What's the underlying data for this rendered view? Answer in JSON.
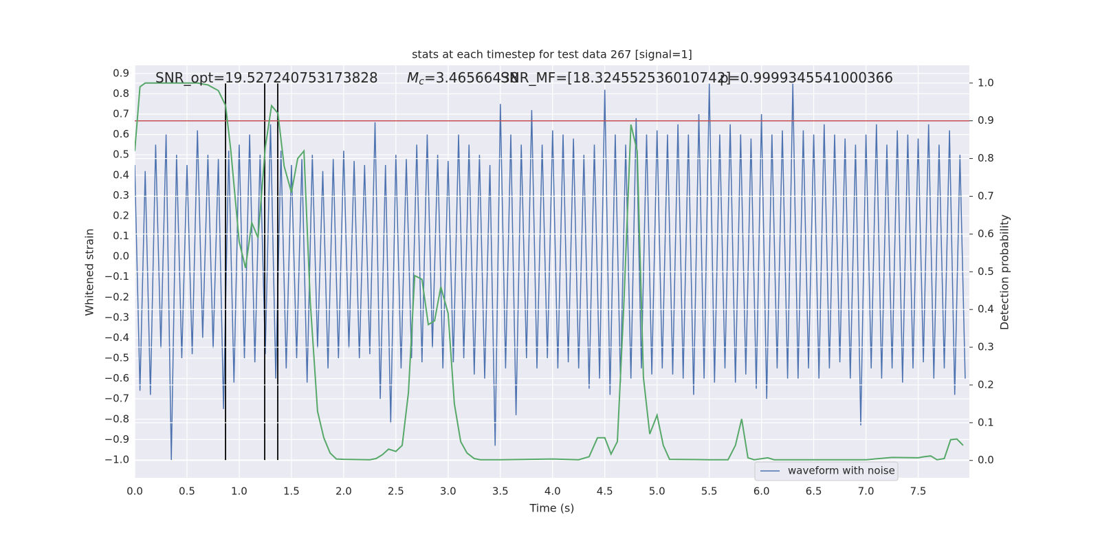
{
  "chart_data": {
    "type": "line",
    "title": "stats at each timestep for test data 267 [signal=1]",
    "xlabel": "Time (s)",
    "ylabel": "Whitened strain",
    "y2label": "Detection probability",
    "xlim": [
      0,
      7.99
    ],
    "ylim": [
      -1.088,
      0.94
    ],
    "y2lim": [
      -0.046,
      1.047
    ],
    "xticks": [
      {
        "value": 0,
        "label": "0.0"
      },
      0.5,
      {
        "value": 1,
        "label": "1.0"
      },
      1.5,
      {
        "value": 2,
        "label": "2.0"
      },
      2.5,
      {
        "value": 3,
        "label": "3.0"
      },
      3.5,
      {
        "value": 4,
        "label": "4.0"
      },
      4.5,
      {
        "value": 5,
        "label": "5.0"
      },
      5.5,
      {
        "value": 6,
        "label": "6.0"
      },
      6.5,
      {
        "value": 7,
        "label": "7.0"
      },
      7.5
    ],
    "yticks": [
      {
        "value": -1,
        "label": "−1.0"
      },
      {
        "value": -0.9,
        "label": "−0.9"
      },
      {
        "value": -0.8,
        "label": "−0.8"
      },
      {
        "value": -0.7,
        "label": "−0.7"
      },
      {
        "value": -0.6,
        "label": "−0.6"
      },
      {
        "value": -0.5,
        "label": "−0.5"
      },
      {
        "value": -0.4,
        "label": "−0.4"
      },
      {
        "value": -0.3,
        "label": "−0.3"
      },
      {
        "value": -0.2,
        "label": "−0.2"
      },
      {
        "value": -0.1,
        "label": "−0.1"
      },
      {
        "value": 0,
        "label": "0.0"
      },
      0.1,
      0.2,
      0.3,
      0.4,
      0.5,
      0.6,
      0.7,
      0.8,
      0.9
    ],
    "y2ticks": [
      {
        "value": 0,
        "label": "0.0"
      },
      0.1,
      0.2,
      0.3,
      0.4,
      0.5,
      0.6,
      0.7,
      0.8,
      0.9,
      {
        "value": 1,
        "label": "1.0"
      }
    ],
    "grid": true,
    "legend": "lower right",
    "annotations": [
      {
        "text": "SNR_opt=19.527240753173828"
      },
      {
        "text": "M",
        "subscript": "c",
        "suffix": "=3.46566438"
      },
      {
        "text": "SNR_MF=[18.324552536010742]"
      },
      {
        "text": "p=0.9999345541000366"
      }
    ],
    "threshold": {
      "value": 0.9,
      "axis": "y2",
      "color": "#c44e52"
    },
    "vlines": {
      "x": [
        0.869,
        1.244,
        1.369
      ],
      "color": "#000000",
      "axis": "y2",
      "range": [
        0,
        1
      ]
    },
    "series": [
      {
        "name": "waveform with noise",
        "color": "#4c72b0",
        "x": [
          0,
          0.05,
          0.1,
          0.15,
          0.2,
          0.25,
          0.3,
          0.35,
          0.4,
          0.45,
          0.5,
          0.55,
          0.6,
          0.65,
          0.7,
          0.75,
          0.8,
          0.85,
          0.9,
          0.95,
          1,
          1.05,
          1.1,
          1.15,
          1.2,
          1.25,
          1.3,
          1.35,
          1.4,
          1.45,
          1.5,
          1.55,
          1.6,
          1.65,
          1.7,
          1.75,
          1.8,
          1.85,
          1.9,
          1.95,
          2,
          2.05,
          2.1,
          2.15,
          2.2,
          2.25,
          2.3,
          2.35,
          2.4,
          2.45,
          2.5,
          2.55,
          2.6,
          2.65,
          2.7,
          2.75,
          2.8,
          2.85,
          2.9,
          2.95,
          3,
          3.05,
          3.1,
          3.15,
          3.2,
          3.25,
          3.3,
          3.35,
          3.4,
          3.45,
          3.5,
          3.55,
          3.6,
          3.65,
          3.7,
          3.75,
          3.8,
          3.85,
          3.9,
          3.95,
          4,
          4.05,
          4.1,
          4.15,
          4.2,
          4.25,
          4.3,
          4.35,
          4.4,
          4.45,
          4.5,
          4.55,
          4.6,
          4.65,
          4.7,
          4.75,
          4.8,
          4.85,
          4.9,
          4.95,
          5,
          5.05,
          5.1,
          5.15,
          5.2,
          5.25,
          5.3,
          5.35,
          5.4,
          5.45,
          5.5,
          5.55,
          5.6,
          5.65,
          5.7,
          5.75,
          5.8,
          5.85,
          5.9,
          5.95,
          6,
          6.05,
          6.1,
          6.15,
          6.2,
          6.25,
          6.3,
          6.35,
          6.4,
          6.45,
          6.5,
          6.55,
          6.6,
          6.65,
          6.7,
          6.75,
          6.8,
          6.85,
          6.9,
          6.95,
          7,
          7.05,
          7.1,
          7.15,
          7.2,
          7.25,
          7.3,
          7.35,
          7.4,
          7.45,
          7.5,
          7.55,
          7.6,
          7.65,
          7.7,
          7.75,
          7.8,
          7.85,
          7.9,
          7.95
        ],
        "values": [
          0.45,
          -0.66,
          0.42,
          -0.68,
          0.55,
          -0.45,
          0.6,
          -1.0,
          0.5,
          -0.5,
          0.45,
          -0.48,
          0.62,
          -0.4,
          0.5,
          -0.45,
          0.48,
          -0.75,
          0.52,
          -0.62,
          0.55,
          -0.5,
          0.6,
          -0.52,
          0.5,
          -0.48,
          0.65,
          -0.6,
          0.52,
          -0.55,
          0.45,
          -0.5,
          0.48,
          -0.62,
          0.5,
          -0.45,
          0.42,
          -0.55,
          0.48,
          -0.5,
          0.52,
          -0.45,
          0.47,
          -0.5,
          0.45,
          -0.48,
          0.66,
          -0.7,
          0.45,
          -0.82,
          0.5,
          -0.55,
          0.48,
          -0.5,
          0.55,
          -0.52,
          0.6,
          -0.45,
          0.5,
          -0.55,
          0.47,
          -0.52,
          0.6,
          -0.5,
          0.55,
          -0.58,
          0.5,
          -0.6,
          0.45,
          -0.93,
          0.75,
          -0.55,
          0.6,
          -0.78,
          0.55,
          -0.5,
          0.72,
          -0.55,
          0.55,
          -0.5,
          0.62,
          -0.55,
          0.6,
          -0.52,
          0.58,
          -0.55,
          0.5,
          -0.65,
          0.55,
          -0.6,
          0.82,
          -0.68,
          0.6,
          -0.62,
          0.55,
          -0.6,
          0.68,
          -0.55,
          0.6,
          -0.58,
          0.62,
          -0.55,
          0.6,
          -0.58,
          0.65,
          -0.6,
          0.6,
          -0.68,
          0.7,
          -0.6,
          0.85,
          -0.62,
          0.6,
          -0.55,
          0.65,
          -0.62,
          0.6,
          -0.58,
          0.58,
          -0.65,
          0.7,
          -0.7,
          0.6,
          -0.55,
          0.62,
          -0.6,
          0.85,
          -0.6,
          0.62,
          -0.55,
          0.6,
          -0.6,
          0.65,
          -0.55,
          0.6,
          -0.52,
          0.58,
          -0.6,
          0.55,
          -0.83,
          0.6,
          -0.55,
          0.65,
          -0.6,
          0.55,
          -0.55,
          0.62,
          -0.62,
          0.6,
          -0.55,
          0.58,
          -0.52,
          0.65,
          -0.6,
          0.55,
          -0.55,
          0.62,
          -0.68,
          0.5,
          -0.6
        ]
      },
      {
        "color": "#55a868",
        "axis": "y2",
        "x": [
          0,
          0.05,
          0.1,
          0.2,
          0.4,
          0.6,
          0.7,
          0.8,
          0.87,
          0.92,
          1,
          1.06,
          1.12,
          1.18,
          1.25,
          1.31,
          1.37,
          1.43,
          1.5,
          1.56,
          1.62,
          1.68,
          1.75,
          1.81,
          1.87,
          1.93,
          2,
          2.25,
          2.31,
          2.37,
          2.43,
          2.5,
          2.56,
          2.62,
          2.68,
          2.75,
          2.81,
          2.87,
          2.93,
          3,
          3.06,
          3.12,
          3.18,
          3.25,
          3.31,
          3.5,
          4,
          4.25,
          4.35,
          4.43,
          4.5,
          4.56,
          4.62,
          4.68,
          4.75,
          4.81,
          4.87,
          4.93,
          5,
          5.06,
          5.12,
          5.5,
          5.68,
          5.75,
          5.81,
          5.87,
          5.93,
          6.06,
          6.12,
          6.5,
          7,
          7.25,
          7.5,
          7.56,
          7.62,
          7.68,
          7.75,
          7.81,
          7.87,
          7.93
        ],
        "values": [
          0.82,
          0.99,
          1.0,
          1.0,
          1.0,
          1.0,
          0.995,
          0.98,
          0.94,
          0.82,
          0.58,
          0.51,
          0.63,
          0.59,
          0.83,
          0.94,
          0.92,
          0.78,
          0.71,
          0.8,
          0.82,
          0.42,
          0.13,
          0.06,
          0.02,
          0.004,
          0.003,
          0.002,
          0.005,
          0.015,
          0.03,
          0.024,
          0.04,
          0.18,
          0.49,
          0.48,
          0.36,
          0.37,
          0.46,
          0.39,
          0.15,
          0.05,
          0.02,
          0.005,
          0.002,
          0.002,
          0.004,
          0.002,
          0.01,
          0.06,
          0.06,
          0.017,
          0.05,
          0.4,
          0.89,
          0.82,
          0.22,
          0.07,
          0.12,
          0.04,
          0.003,
          0.002,
          0.002,
          0.04,
          0.11,
          0.007,
          0.002,
          0.007,
          0.002,
          0.002,
          0.002,
          0.008,
          0.007,
          0.01,
          0.012,
          0.002,
          0.005,
          0.055,
          0.057,
          0.04
        ]
      }
    ]
  }
}
